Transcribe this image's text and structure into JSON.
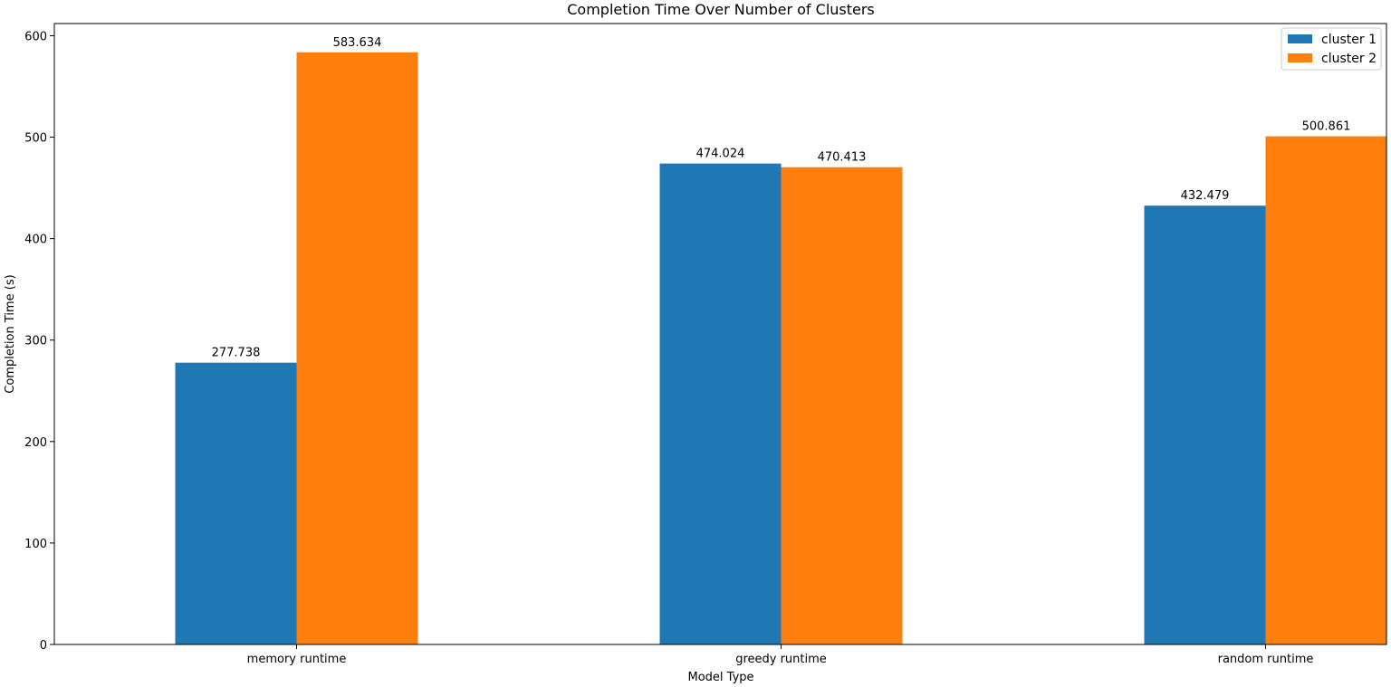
{
  "chart_data": {
    "type": "bar",
    "title": "Completion Time Over Number of Clusters",
    "xlabel": "Model Type",
    "ylabel": "Completion Time (s)",
    "categories": [
      "memory runtime",
      "greedy runtime",
      "random runtime"
    ],
    "series": [
      {
        "name": "cluster 1",
        "values": [
          277.738,
          474.024,
          432.479
        ],
        "color": "#1f77b4"
      },
      {
        "name": "cluster 2",
        "values": [
          583.634,
          470.413,
          500.861
        ],
        "color": "#ff7f0e"
      }
    ],
    "ylim": [
      0,
      612
    ],
    "yticks": [
      0,
      100,
      200,
      300,
      400,
      500,
      600
    ],
    "legend": "top-right",
    "grid": false
  }
}
